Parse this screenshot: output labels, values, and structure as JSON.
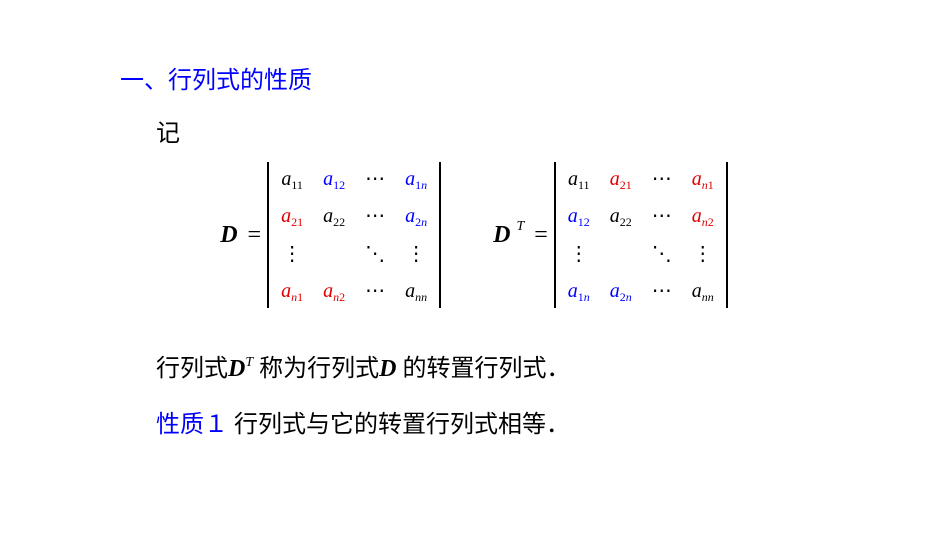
{
  "colors": {
    "blue": "#0000ff",
    "red": "#e00000",
    "black": "#000000",
    "background": "#ffffff"
  },
  "typography": {
    "heading_fontsize": 24,
    "body_fontsize": 24,
    "matrix_fontsize": 20,
    "subscript_fontsize": 12
  },
  "heading": "一、行列式的性质",
  "lead": "记",
  "D_label": "D",
  "DT_label": "D",
  "DT_sup": "T",
  "equals": "=",
  "matrixD": {
    "rows": [
      [
        {
          "base": "a",
          "sub": "11",
          "subItalic": false,
          "color": "black"
        },
        {
          "base": "a",
          "sub": "12",
          "subItalic": false,
          "color": "blue"
        },
        {
          "dots": "⋯",
          "color": "black"
        },
        {
          "base": "a",
          "sub_parts": [
            {
              "t": "1",
              "i": false
            },
            {
              "t": "n",
              "i": true
            }
          ],
          "color": "blue"
        }
      ],
      [
        {
          "base": "a",
          "sub": "21",
          "subItalic": false,
          "color": "red"
        },
        {
          "base": "a",
          "sub": "22",
          "subItalic": false,
          "color": "black"
        },
        {
          "dots": "⋯",
          "color": "black"
        },
        {
          "base": "a",
          "sub_parts": [
            {
              "t": "2",
              "i": false
            },
            {
              "t": "n",
              "i": true
            }
          ],
          "color": "blue"
        }
      ],
      [
        {
          "vdots": "⋮",
          "color": "black"
        },
        {
          "empty": true
        },
        {
          "ddots": "⋱",
          "color": "black"
        },
        {
          "vdots": "⋮",
          "color": "black"
        }
      ],
      [
        {
          "base": "a",
          "sub_parts": [
            {
              "t": "n",
              "i": true
            },
            {
              "t": "1",
              "i": false
            }
          ],
          "color": "red"
        },
        {
          "base": "a",
          "sub_parts": [
            {
              "t": "n",
              "i": true
            },
            {
              "t": "2",
              "i": false
            }
          ],
          "color": "red"
        },
        {
          "dots": "⋯",
          "color": "black"
        },
        {
          "base": "a",
          "sub_parts": [
            {
              "t": "nn",
              "i": true
            }
          ],
          "color": "black"
        }
      ]
    ]
  },
  "matrixDT": {
    "rows": [
      [
        {
          "base": "a",
          "sub": "11",
          "subItalic": false,
          "color": "black"
        },
        {
          "base": "a",
          "sub": "21",
          "subItalic": false,
          "color": "red"
        },
        {
          "dots": "⋯",
          "color": "black"
        },
        {
          "base": "a",
          "sub_parts": [
            {
              "t": "n",
              "i": true
            },
            {
              "t": "1",
              "i": false
            }
          ],
          "color": "red"
        }
      ],
      [
        {
          "base": "a",
          "sub": "12",
          "subItalic": false,
          "color": "blue"
        },
        {
          "base": "a",
          "sub": "22",
          "subItalic": false,
          "color": "black"
        },
        {
          "dots": "⋯",
          "color": "black"
        },
        {
          "base": "a",
          "sub_parts": [
            {
              "t": "n",
              "i": true
            },
            {
              "t": "2",
              "i": false
            }
          ],
          "color": "red"
        }
      ],
      [
        {
          "vdots": "⋮",
          "color": "black"
        },
        {
          "empty": true
        },
        {
          "ddots": "⋱",
          "color": "black"
        },
        {
          "vdots": "⋮",
          "color": "black"
        }
      ],
      [
        {
          "base": "a",
          "sub_parts": [
            {
              "t": "1",
              "i": false
            },
            {
              "t": "n",
              "i": true
            }
          ],
          "color": "blue"
        },
        {
          "base": "a",
          "sub_parts": [
            {
              "t": "2",
              "i": false
            },
            {
              "t": "n",
              "i": true
            }
          ],
          "color": "blue"
        },
        {
          "dots": "⋯",
          "color": "black"
        },
        {
          "base": "a",
          "sub_parts": [
            {
              "t": "nn",
              "i": true
            }
          ],
          "color": "black"
        }
      ]
    ]
  },
  "statement1_pre": "行列式",
  "statement1_D": "D",
  "statement1_T": "T",
  "statement1_mid": " 称为行列式",
  "statement1_D2": "D",
  "statement1_post": " 的转置行列式．",
  "prop_label": "性质１",
  "prop_text": "  行列式与它的转置行列式相等．"
}
